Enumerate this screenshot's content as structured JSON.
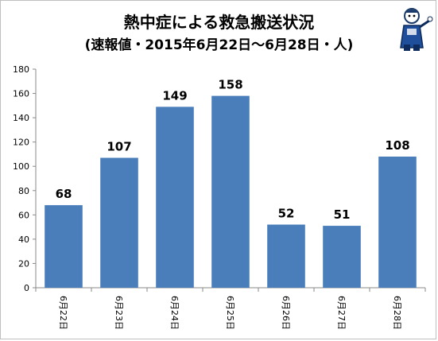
{
  "title": "熱中症による救急搬送状況",
  "subtitle": "(速報値・2015年6月22日〜6月28日・人)",
  "mascot_icon": "illustrated-character-icon",
  "colors": {
    "bar": "#4a7ebb",
    "axis": "#888888",
    "text": "#000000"
  },
  "chart_data": {
    "type": "bar",
    "categories": [
      "6月22日",
      "6月23日",
      "6月24日",
      "6月25日",
      "6月26日",
      "6月27日",
      "6月28日"
    ],
    "values": [
      68,
      107,
      149,
      158,
      52,
      51,
      108
    ],
    "data_labels": [
      "68",
      "107",
      "149",
      "158",
      "52",
      "51",
      "108"
    ],
    "ylim": [
      0,
      180
    ],
    "yticks": [
      "0",
      "20",
      "40",
      "60",
      "80",
      "100",
      "120",
      "140",
      "160",
      "180"
    ],
    "grid": false,
    "legend": "none"
  }
}
